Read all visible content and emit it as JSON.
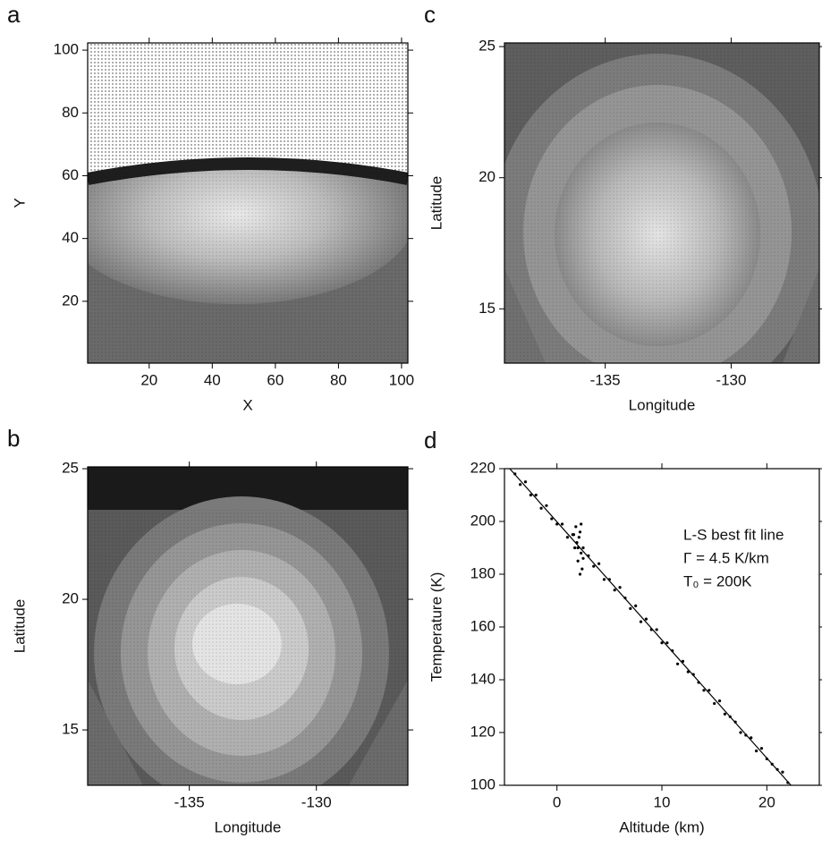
{
  "chart_data": [
    {
      "type": "image",
      "label": "a",
      "x_label": "X",
      "y_label": "Y",
      "xlim": [
        0.5,
        102
      ],
      "ylim": [
        0.3,
        102.3
      ],
      "xticks": [
        20,
        40,
        60,
        80,
        100
      ],
      "yticks": [
        20,
        40,
        60,
        80,
        100
      ]
    },
    {
      "type": "image",
      "label": "b",
      "x_label": "Longitude",
      "y_label": "Latitude",
      "xlim": [
        -139,
        -126.4
      ],
      "ylim": [
        12.88,
        25.07
      ],
      "xticks": [
        -135,
        -130
      ],
      "yticks": [
        15,
        20,
        25
      ]
    },
    {
      "type": "image",
      "label": "c",
      "x_label": "Longitude",
      "y_label": "Latitude",
      "xlim": [
        -139,
        -126.5
      ],
      "ylim": [
        12.93,
        25.14
      ],
      "xticks": [
        -135,
        -130
      ],
      "yticks": [
        15,
        20,
        25
      ]
    },
    {
      "type": "scatter",
      "label": "d",
      "x_label": "Altitude (km)",
      "y_label": "Temperature (K)",
      "xlim": [
        -5,
        25
      ],
      "ylim": [
        100,
        220
      ],
      "xticks": [
        0,
        10,
        20
      ],
      "yticks": [
        100,
        120,
        140,
        160,
        180,
        200,
        220
      ],
      "annotations": [
        "L-S best fit line",
        "Γ = 4.5 K/km",
        "T₀ = 200K"
      ],
      "color": "#000000",
      "x": [
        -4,
        -3.5,
        -3,
        -2.5,
        -2,
        -1.5,
        -1,
        -0.5,
        0,
        0.5,
        1,
        1.5,
        2,
        2.5,
        3,
        3.5,
        4,
        4.5,
        5,
        5.5,
        6,
        6.5,
        7,
        7.5,
        8,
        8.5,
        9,
        9.5,
        10,
        10.5,
        11,
        11.5,
        12,
        12.5,
        13,
        13.5,
        14,
        14.5,
        15,
        15.5,
        16,
        16.5,
        17,
        17.5,
        18,
        18.5,
        19,
        19.5,
        20,
        20.5,
        21,
        21.5,
        22,
        1.8,
        2.2,
        1.9,
        2.3,
        2.0,
        2.4,
        1.7,
        2.1,
        2.5,
        2.2,
        1.6,
        2.3
      ],
      "y": [
        218,
        214,
        215,
        210,
        210,
        205,
        206,
        201,
        199,
        199,
        194,
        195,
        190,
        190,
        187,
        183,
        184,
        178,
        178,
        174,
        175,
        171,
        167,
        168,
        162,
        163,
        159,
        159,
        154,
        154,
        151,
        146,
        147,
        143,
        142,
        139,
        136,
        136,
        131,
        132,
        127,
        126,
        124,
        120,
        119,
        118,
        113,
        114,
        110,
        108,
        106,
        105,
        101,
        198,
        196,
        192,
        188,
        185,
        182,
        190,
        194,
        186,
        180,
        195,
        199
      ],
      "fit": {
        "x": [
          -4.5,
          22.3
        ],
        "y": [
          220,
          100
        ]
      }
    }
  ]
}
